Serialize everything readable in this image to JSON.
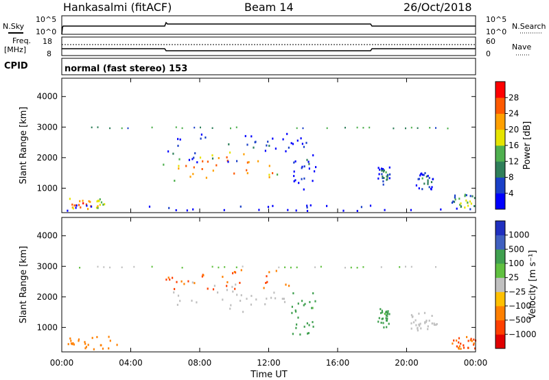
{
  "header": {
    "station": "Hankasalmi (fitACF)",
    "beam": "Beam 14",
    "date": "26/Oct/2018"
  },
  "strips": {
    "nsky_label": "N.Sky",
    "nsky_ticks": [
      "10^5",
      "10^0"
    ],
    "nsearch_label": "N.Search",
    "nsearch_ticks": [
      "10^5",
      "10^0"
    ],
    "freq_label_1": "Freq.",
    "freq_label_2": "[MHz]",
    "freq_ticks": [
      "18",
      "8"
    ],
    "nave_label": "Nave",
    "nave_ticks": [
      "60",
      "0"
    ],
    "cpid_label": "CPID",
    "cpid_text": "normal (fast stereo) 153"
  },
  "chart_data": [
    {
      "type": "heatmap",
      "name": "power-panel",
      "title": "",
      "xlabel": "",
      "ylabel": "Slant Range [km]",
      "xlim": [
        0,
        24
      ],
      "ylim": [
        200,
        4600
      ],
      "yticks": [
        1000,
        2000,
        3000,
        4000
      ],
      "colorbar": {
        "label": "Power [dB]",
        "ticks": [
          "4",
          "8",
          "12",
          "16",
          "20",
          "24",
          "28"
        ],
        "range": [
          0,
          32
        ],
        "colors": [
          "#0000ff",
          "#1a40c8",
          "#2f7f5a",
          "#4fb04f",
          "#e6e400",
          "#ffa000",
          "#ff5a00",
          "#ff0000"
        ]
      },
      "regions": [
        {
          "t0": 0.0,
          "t1": 2.5,
          "r0": 280,
          "r1": 700,
          "value": 26
        },
        {
          "t0": 5.8,
          "t1": 13.0,
          "r0": 1100,
          "r1": 2200,
          "value": 27
        },
        {
          "t0": 5.8,
          "t1": 13.5,
          "r0": 1800,
          "r1": 2800,
          "value": 10
        },
        {
          "t0": 13.3,
          "t1": 14.8,
          "r0": 900,
          "r1": 2700,
          "value": 8
        },
        {
          "t0": 18.3,
          "t1": 19.0,
          "r0": 1100,
          "r1": 1700,
          "value": 12
        },
        {
          "t0": 20.5,
          "t1": 21.6,
          "r0": 900,
          "r1": 1500,
          "value": 12
        },
        {
          "t0": 22.6,
          "t1": 24.0,
          "r0": 280,
          "r1": 800,
          "value": 18
        },
        {
          "t0": 0.0,
          "t1": 24.0,
          "r0": 250,
          "r1": 450,
          "value": 6
        }
      ]
    },
    {
      "type": "heatmap",
      "name": "velocity-panel",
      "title": "",
      "xlabel": "Time UT",
      "ylabel": "Slant Range [km]",
      "xlim": [
        0,
        24
      ],
      "ylim": [
        200,
        4600
      ],
      "xticks": [
        "00:00",
        "04:00",
        "08:00",
        "12:00",
        "16:00",
        "20:00",
        "00:00"
      ],
      "yticks": [
        1000,
        2000,
        3000,
        4000
      ],
      "colorbar": {
        "label": "Velocity [m s⁻¹]",
        "ticks": [
          "1000",
          "500",
          "100",
          "25",
          "−25",
          "−100",
          "−500",
          "−1000"
        ],
        "colors": [
          "#2030c0",
          "#4060c0",
          "#40a050",
          "#60c040",
          "#c0c0c0",
          "#ffc000",
          "#ff8000",
          "#ff4000",
          "#e00000"
        ]
      },
      "regions": [
        {
          "t0": 6.0,
          "t1": 13.4,
          "r0": 1500,
          "r1": 2500,
          "value": 0
        },
        {
          "t0": 6.0,
          "t1": 13.4,
          "r0": 2200,
          "r1": 2900,
          "value": -300
        },
        {
          "t0": 13.3,
          "t1": 14.8,
          "r0": 700,
          "r1": 2200,
          "value": 120
        },
        {
          "t0": 0.0,
          "t1": 3.2,
          "r0": 280,
          "r1": 700,
          "value": -150
        },
        {
          "t0": 18.3,
          "t1": 19.0,
          "r0": 1000,
          "r1": 1600,
          "value": 120
        },
        {
          "t0": 20.0,
          "t1": 21.8,
          "r0": 900,
          "r1": 1500,
          "value": 0
        },
        {
          "t0": 22.6,
          "t1": 24.0,
          "r0": 280,
          "r1": 700,
          "value": -300
        }
      ]
    }
  ]
}
